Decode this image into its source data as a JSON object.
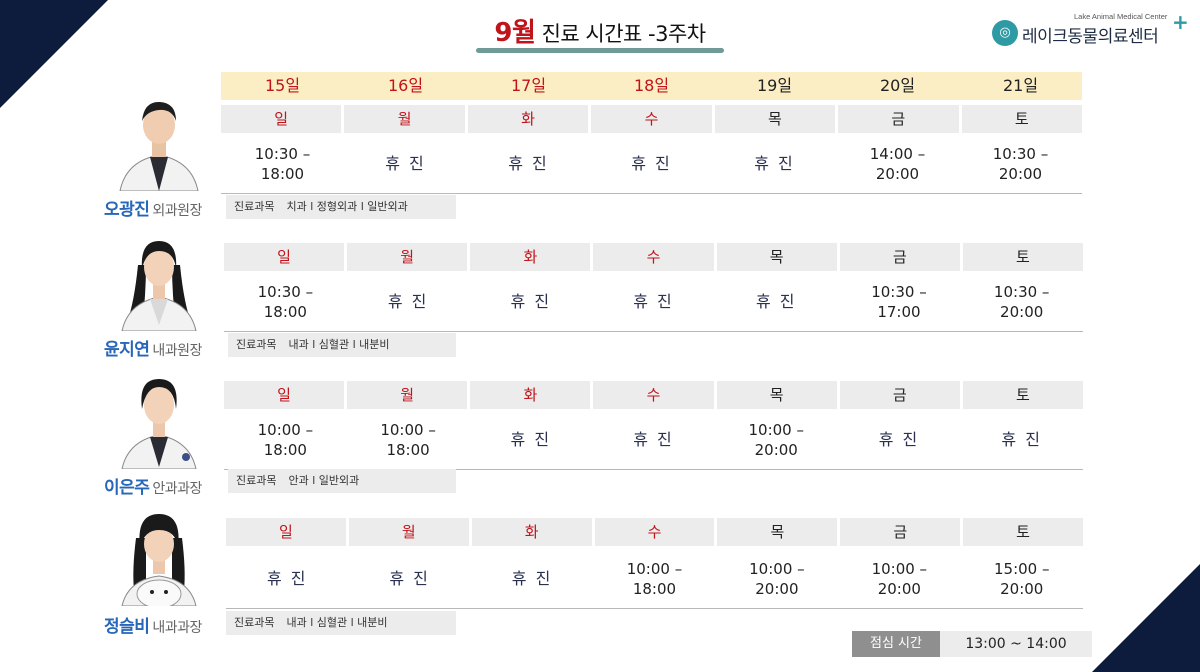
{
  "header": {
    "month": "9월",
    "title_rest": " 진료 시간표 -3주차"
  },
  "logo": {
    "english": "Lake Animal Medical Center",
    "korean": "레이크동물의료센터",
    "plus": "+"
  },
  "dates": [
    "15일",
    "16일",
    "17일",
    "18일",
    "19일",
    "20일",
    "21일"
  ],
  "days": [
    "일",
    "월",
    "화",
    "수",
    "목",
    "금",
    "토"
  ],
  "colors": {
    "weekend_red": "#c0131a",
    "name_blue": "#2766b8",
    "accent_teal": "#6f9a96",
    "navy": "#0d1b3d"
  },
  "doctors": [
    {
      "name": "오광진",
      "position": "외과원장",
      "dept_label": "진료과목",
      "dept": "치과 l 정형외과 l 일반외과",
      "times": [
        "10:30 –\n18:00",
        "휴 진",
        "휴 진",
        "휴 진",
        "휴 진",
        "14:00 –\n20:00",
        "10:30 –\n20:00"
      ]
    },
    {
      "name": "윤지연",
      "position": "내과원장",
      "dept_label": "진료과목",
      "dept": "내과 l 심혈관 l 내분비",
      "times": [
        "10:30 –\n18:00",
        "휴 진",
        "휴 진",
        "휴 진",
        "휴 진",
        "10:30 –\n17:00",
        "10:30 –\n20:00"
      ]
    },
    {
      "name": "이은주",
      "position": "안과과장",
      "dept_label": "진료과목",
      "dept": "안과 l 일반외과",
      "times": [
        "10:00 –\n18:00",
        "10:00 –\n18:00",
        "휴 진",
        "휴 진",
        "10:00 –\n20:00",
        "휴 진",
        "휴 진"
      ]
    },
    {
      "name": "정슬비",
      "position": "내과과장",
      "dept_label": "진료과목",
      "dept": "내과 l 심혈관 l 내분비",
      "times": [
        "휴 진",
        "휴 진",
        "휴 진",
        "10:00 –\n18:00",
        "10:00 –\n20:00",
        "10:00 –\n20:00",
        "15:00 –\n20:00"
      ]
    }
  ],
  "lunch": {
    "label": "점심 시간",
    "time": "13:00 ~ 14:00"
  }
}
